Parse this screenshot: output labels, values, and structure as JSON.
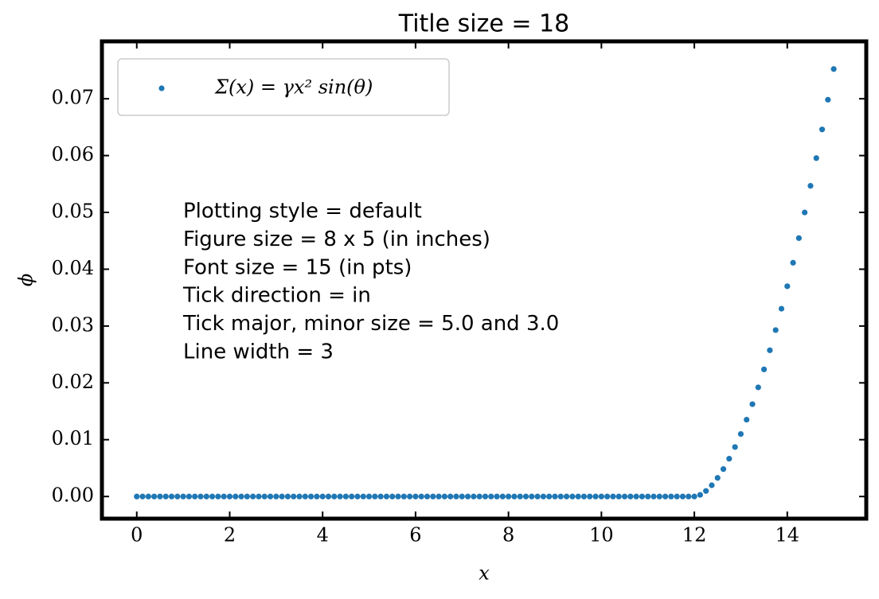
{
  "chart_data": {
    "type": "scatter",
    "title": "Title size = 18",
    "x_label": "x",
    "y_label": "ϕ",
    "annotations": [
      "Plotting style = default",
      "Figure size = 8 x 5 (in inches)",
      "Font size = 15 (in pts)",
      "Tick direction = in",
      "Tick major, minor size = 5.0 and 3.0",
      "Line width = 3"
    ],
    "x": [
      0,
      0.125,
      0.25,
      0.375,
      0.5,
      0.625,
      0.75,
      0.875,
      1,
      1.125,
      1.25,
      1.375,
      1.5,
      1.625,
      1.75,
      1.875,
      2,
      2.125,
      2.25,
      2.375,
      2.5,
      2.625,
      2.75,
      2.875,
      3,
      3.125,
      3.25,
      3.375,
      3.5,
      3.625,
      3.75,
      3.875,
      4,
      4.125,
      4.25,
      4.375,
      4.5,
      4.625,
      4.75,
      4.875,
      5,
      5.125,
      5.25,
      5.375,
      5.5,
      5.625,
      5.75,
      5.875,
      6,
      6.125,
      6.25,
      6.375,
      6.5,
      6.625,
      6.75,
      6.875,
      7,
      7.125,
      7.25,
      7.375,
      7.5,
      7.625,
      7.75,
      7.875,
      8,
      8.125,
      8.25,
      8.375,
      8.5,
      8.625,
      8.75,
      8.875,
      9,
      9.125,
      9.25,
      9.375,
      9.5,
      9.625,
      9.75,
      9.875,
      10,
      10.125,
      10.25,
      10.375,
      10.5,
      10.625,
      10.75,
      10.875,
      11,
      11.125,
      11.25,
      11.375,
      11.5,
      11.625,
      11.75,
      11.875,
      12,
      12.125,
      12.25,
      12.375,
      12.5,
      12.625,
      12.75,
      12.875,
      13,
      13.125,
      13.25,
      13.375,
      13.5,
      13.625,
      13.75,
      13.875,
      14,
      14.125,
      14.25,
      14.375,
      14.5,
      14.625,
      14.75,
      14.875,
      15
    ],
    "series": [
      {
        "name": "Σ(x) = γx² sin(θ)",
        "color": "#1f77b4",
        "values": [
          0,
          0,
          0,
          0,
          0,
          0,
          0,
          0,
          0,
          0,
          0,
          0,
          0,
          0,
          0,
          0,
          0,
          0,
          0,
          0,
          0,
          0,
          0,
          0,
          0,
          0,
          0,
          0,
          0,
          0,
          0,
          0,
          0,
          0,
          0,
          0,
          0,
          0,
          0,
          0,
          0,
          0,
          0,
          0,
          0,
          0,
          0,
          0,
          0,
          0,
          0,
          0,
          0,
          0,
          0,
          0,
          0,
          0,
          0,
          0,
          0,
          0,
          0,
          0,
          0,
          0,
          0,
          0,
          0,
          0,
          0,
          0,
          0,
          0,
          0,
          0,
          0,
          0,
          0,
          0,
          0,
          0,
          0,
          0,
          0,
          0,
          0,
          0,
          0,
          0,
          0,
          0,
          0,
          0,
          0,
          0,
          0,
          0.00029,
          0.00097,
          0.00198,
          0.00327,
          0.00483,
          0.00665,
          0.00871,
          0.011,
          0.01352,
          0.01625,
          0.01921,
          0.02237,
          0.02573,
          0.02929,
          0.03305,
          0.037,
          0.04114,
          0.04547,
          0.04999,
          0.05468,
          0.05955,
          0.0646,
          0.06983,
          0.07523
        ]
      }
    ],
    "xlim": [
      -0.75,
      15.7
    ],
    "ylim": [
      -0.0039,
      0.0801
    ],
    "xticks": [
      0,
      2,
      4,
      6,
      8,
      10,
      12,
      14
    ],
    "yticks": [
      {
        "value": 0,
        "label": "0.00"
      },
      {
        "value": 0.01,
        "label": "0.01"
      },
      {
        "value": 0.02,
        "label": "0.02"
      },
      {
        "value": 0.03,
        "label": "0.03"
      },
      {
        "value": 0.04,
        "label": "0.04"
      },
      {
        "value": 0.05,
        "label": "0.05"
      },
      {
        "value": 0.06,
        "label": "0.06"
      },
      {
        "value": 0.07,
        "label": "0.07"
      }
    ],
    "legend": "upper left",
    "grid": false
  }
}
